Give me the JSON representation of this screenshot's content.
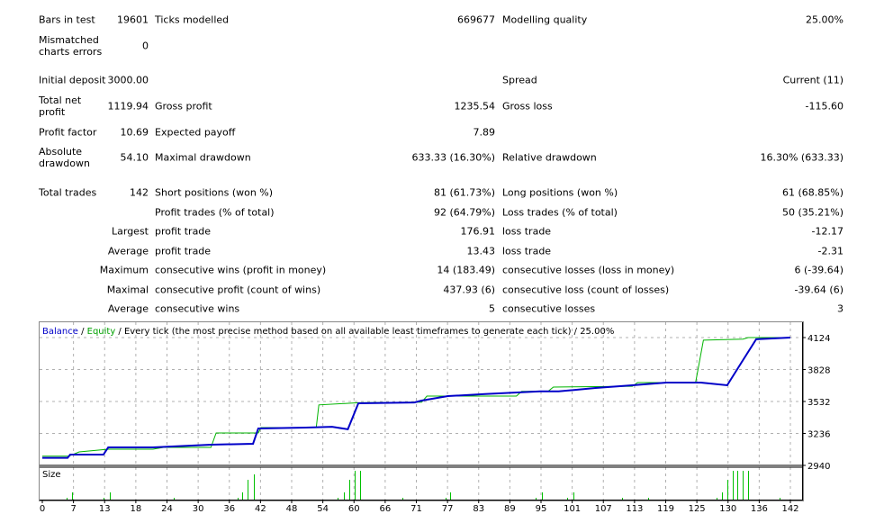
{
  "report": {
    "rows": [
      [
        "Bars in test",
        "19601",
        "Ticks modelled",
        "669677",
        "Modelling quality",
        "25.00%"
      ],
      [
        "Mismatched\ncharts errors",
        "0",
        "",
        "",
        "",
        ""
      ],
      [
        "Initial deposit",
        "3000.00",
        "",
        "",
        "Spread",
        "Current (11)"
      ],
      [
        "Total net\nprofit",
        "1119.94",
        "Gross profit",
        "1235.54",
        "Gross loss",
        "-115.60"
      ],
      [
        "Profit factor",
        "10.69",
        "Expected payoff",
        "7.89",
        "",
        ""
      ],
      [
        "Absolute\ndrawdown",
        "54.10",
        "Maximal drawdown",
        "633.33 (16.30%)",
        "Relative drawdown",
        "16.30% (633.33)"
      ],
      [
        "Total trades",
        "142",
        "Short positions (won %)",
        "81 (61.73%)",
        "Long positions (won %)",
        "61 (68.85%)"
      ],
      [
        "",
        "",
        "Profit trades (% of total)",
        "92 (64.79%)",
        "Loss trades (% of total)",
        "50 (35.21%)"
      ],
      [
        "",
        "Largest",
        "profit trade",
        "176.91",
        "loss trade",
        "-12.17"
      ],
      [
        "",
        "Average",
        "profit trade",
        "13.43",
        "loss trade",
        "-2.31"
      ],
      [
        "",
        "Maximum",
        "consecutive wins (profit in money)",
        "14 (183.49)",
        "consecutive losses (loss in money)",
        "6 (-39.64)"
      ],
      [
        "",
        "Maximal",
        "consecutive profit (count of wins)",
        "437.93 (6)",
        "consecutive loss (count of losses)",
        "-39.64 (6)"
      ],
      [
        "",
        "Average",
        "consecutive wins",
        "5",
        "consecutive losses",
        "3"
      ]
    ]
  },
  "chart_data": {
    "type": "line",
    "legend": {
      "balance": "Balance",
      "sep1": " / ",
      "equity": "Equity",
      "rest": " / Every tick (the most precise method based on all available least timeframes to generate each tick) / 25.00%"
    },
    "size_label": "Size",
    "colors": {
      "balance": "#0000c8",
      "equity": "#00b400",
      "size": "#00c000",
      "grid": "#b0b0b0"
    },
    "xlim": [
      0,
      142
    ],
    "ylim": [
      2940,
      4124
    ],
    "y_ticks": [
      "4124",
      "3828",
      "3532",
      "3236",
      "2940"
    ],
    "x_ticks": [
      "0",
      "7",
      "13",
      "18",
      "24",
      "30",
      "36",
      "42",
      "48",
      "54",
      "60",
      "66",
      "71",
      "77",
      "83",
      "89",
      "95",
      "101",
      "107",
      "113",
      "119",
      "125",
      "130",
      "136",
      "142"
    ],
    "series": [
      {
        "name": "Balance",
        "x": [
          0,
          4.8,
          5.3,
          11.6,
          12.5,
          21,
          32,
          40,
          41,
          50,
          55,
          58,
          60,
          70.6,
          72,
          77,
          84,
          94.5,
          98,
          105,
          112,
          118.5,
          125,
          130,
          133,
          135.5,
          142
        ],
        "y": [
          3010,
          3010,
          3040,
          3040,
          3107,
          3107,
          3132,
          3140,
          3282,
          3290,
          3298,
          3274,
          3515,
          3523,
          3540,
          3582,
          3600,
          3625,
          3625,
          3657,
          3682,
          3707,
          3707,
          3682,
          3915,
          4108,
          4124
        ]
      },
      {
        "name": "Equity",
        "x": [
          0,
          5,
          7,
          12.5,
          21,
          23,
          32,
          33,
          41,
          41.5,
          52,
          52.5,
          60,
          72,
          73,
          90,
          91,
          96,
          97,
          112,
          113,
          124,
          125.5,
          133,
          134,
          142
        ],
        "y": [
          3025,
          3025,
          3065,
          3090,
          3090,
          3107,
          3107,
          3240,
          3240,
          3290,
          3290,
          3500,
          3520,
          3525,
          3582,
          3582,
          3625,
          3625,
          3665,
          3673,
          3707,
          3707,
          4100,
          4110,
          4124,
          4124
        ]
      }
    ],
    "size": {
      "x": [
        4.6,
        5.6,
        11.6,
        12.8,
        25,
        37,
        38,
        39,
        40.2,
        56,
        57.3,
        58.3,
        59.3,
        60.3,
        68.4,
        76.6,
        77.4,
        93.7,
        94.9,
        99.7,
        100.9,
        110,
        115,
        128,
        129,
        130,
        131,
        132,
        133,
        134,
        140
      ],
      "y": [
        0.01,
        0.04,
        0.01,
        0.04,
        0.01,
        0.01,
        0.04,
        0.11,
        0.14,
        0.01,
        0.04,
        0.11,
        0.16,
        0.16,
        0.01,
        0.01,
        0.04,
        0.01,
        0.04,
        0.01,
        0.04,
        0.01,
        0.01,
        0.01,
        0.04,
        0.11,
        0.16,
        0.16,
        0.16,
        0.16,
        0.01
      ]
    }
  }
}
